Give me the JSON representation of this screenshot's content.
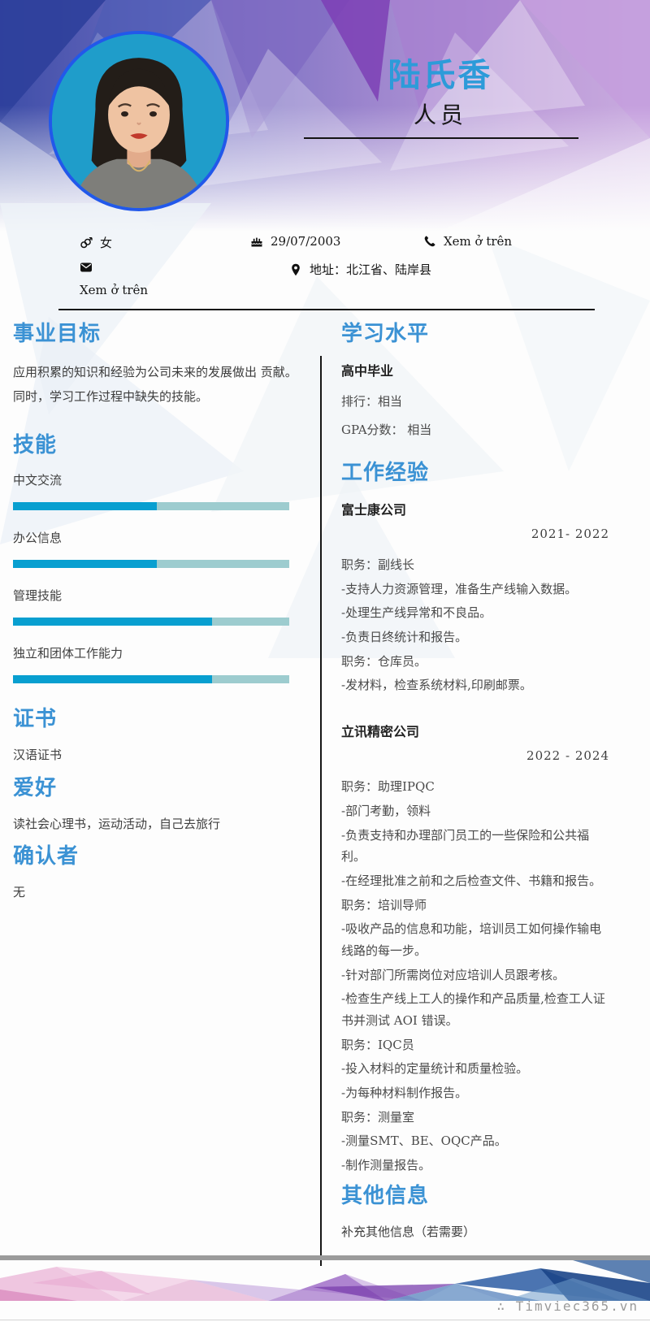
{
  "header": {
    "name": "陆氏香",
    "title": "人员"
  },
  "contact": {
    "gender": "女",
    "birthday": "29/07/2003",
    "phone": "Xem ở trên",
    "email": "Xem ở trên",
    "address": "地址：北江省、陆岸县"
  },
  "icons": [
    "gender-icon",
    "birthday-icon",
    "phone-icon",
    "email-icon",
    "location-icon"
  ],
  "sections": {
    "objective": {
      "heading": "事业目标",
      "body": "应用积累的知识和经验为公司未来的发展做出 贡献。同时，学习工作过程中缺失的技能。"
    },
    "skills": {
      "heading": "技能",
      "items": [
        {
          "label": "中文交流",
          "percent": 52
        },
        {
          "label": "办公信息",
          "percent": 52
        },
        {
          "label": "管理技能",
          "percent": 72
        },
        {
          "label": "独立和团体工作能力",
          "percent": 72
        }
      ]
    },
    "certificates": {
      "heading": "证书",
      "body": "汉语证书"
    },
    "hobbies": {
      "heading": "爱好",
      "body": "读社会心理书，运动活动，自己去旅行"
    },
    "references": {
      "heading": "确认者",
      "body": "无"
    },
    "education": {
      "heading": "学习水平",
      "degree": "高中毕业",
      "rank": "排行：相当",
      "gpa": "GPA分数： 相当"
    },
    "experience": {
      "heading": "工作经验",
      "jobs": [
        {
          "company": "富士康公司",
          "period": "2021- 2022",
          "lines": [
            "职务：副线长",
            "-支持人力资源管理，准备生产线输入数据。",
            "-处理生产线异常和不良品。",
            "-负责日终统计和报告。",
            "职务：仓库员。",
            "-发材料，检查系统材料,印刷邮票。"
          ]
        },
        {
          "company": "立讯精密公司",
          "period": "2022 - 2024",
          "lines": [
            "职务：助理IPQC",
            "-部门考勤，领料",
            "-负责支持和办理部门员工的一些保险和公共福利。",
            "-在经理批准之前和之后检查文件、书籍和报告。",
            "职务：培训导师",
            "-吸收产品的信息和功能，培训员工如何操作输电线路的每一步。",
            "-针对部门所需岗位对应培训人员跟考核。",
            "-检查生产线上工人的操作和产品质量,检查工人证书并测试 AOI 错误。",
            "职务：IQC员",
            "-投入材料的定量统计和质量检验。",
            "-为每种材料制作报告。",
            "职务：测量室",
            "-测量SMT、BE、OQC产品。",
            "-制作测量报告。"
          ]
        }
      ]
    },
    "other": {
      "heading": "其他信息",
      "body": "补充其他信息（若需要）"
    }
  },
  "footer": {
    "watermark": "∴ Timviec365.vn"
  },
  "colors": {
    "accent": "#3b92d4",
    "name": "#2d9bd9",
    "bar_fill": "#089fd0",
    "bar_track": "#9dcccf",
    "photo_ring": "#2258ea"
  }
}
